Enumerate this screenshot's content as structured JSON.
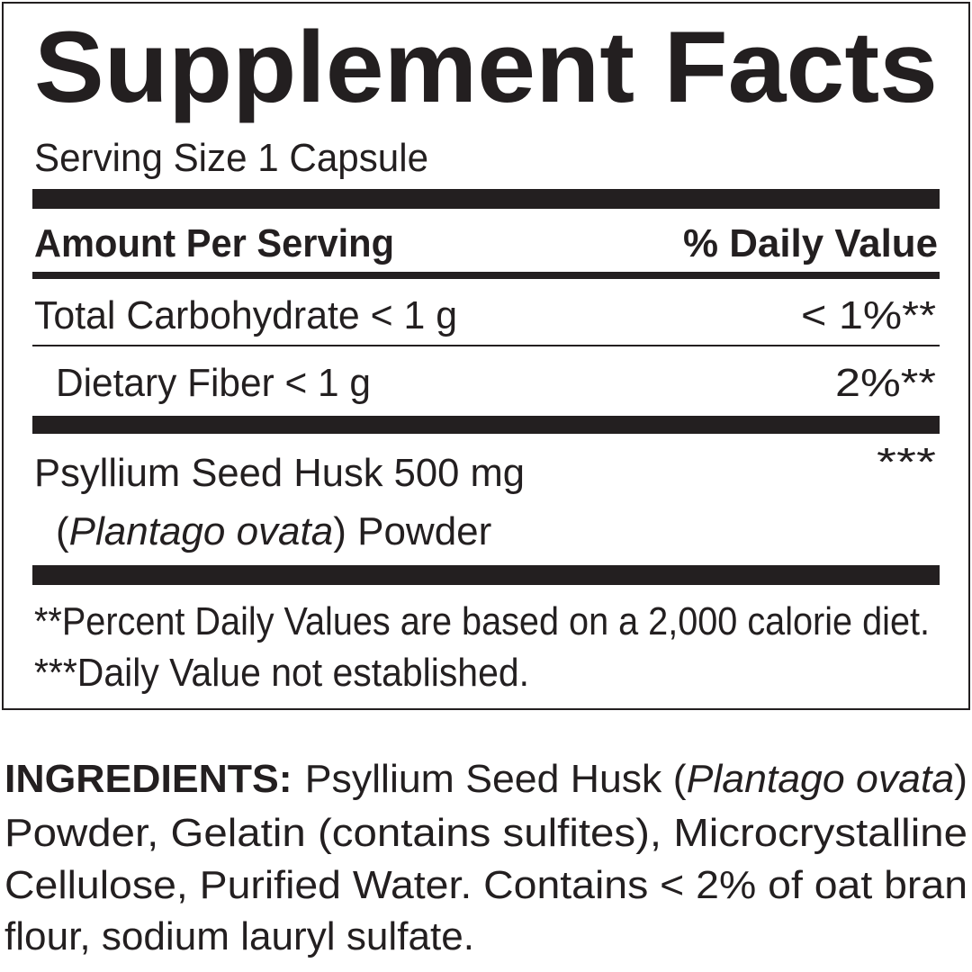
{
  "title": "Supplement Facts",
  "serving_size": "Serving Size 1 Capsule",
  "header": {
    "amount": "Amount Per Serving",
    "daily_value": "% Daily Value"
  },
  "nutrients": [
    {
      "name": "Total Carbohydrate < 1 g",
      "daily_value": "< 1%**"
    },
    {
      "name": "Dietary Fiber < 1 g",
      "daily_value": "2%**"
    }
  ],
  "ingredient": {
    "name": "Psyllium Seed Husk 500 mg",
    "daily_value": "***",
    "source_open": "(",
    "source_latin": "Plantago ovata",
    "source_close": ") Powder"
  },
  "footnotes": [
    "**Percent Daily Values are based on a 2,000 calorie diet.",
    "***Daily Value not established."
  ],
  "ingredients": {
    "label": "INGREDIENTS:",
    "first_line": {
      "text": "Psyllium Seed Husk (",
      "latin": "Plantago ovata",
      "close": ")"
    },
    "lines": [
      "Powder, Gelatin (contains sulfites), Microcrystalline",
      "Cellulose, Purified Water. Contains < 2% of oat bran",
      "flour, sodium lauryl sulfate."
    ]
  }
}
